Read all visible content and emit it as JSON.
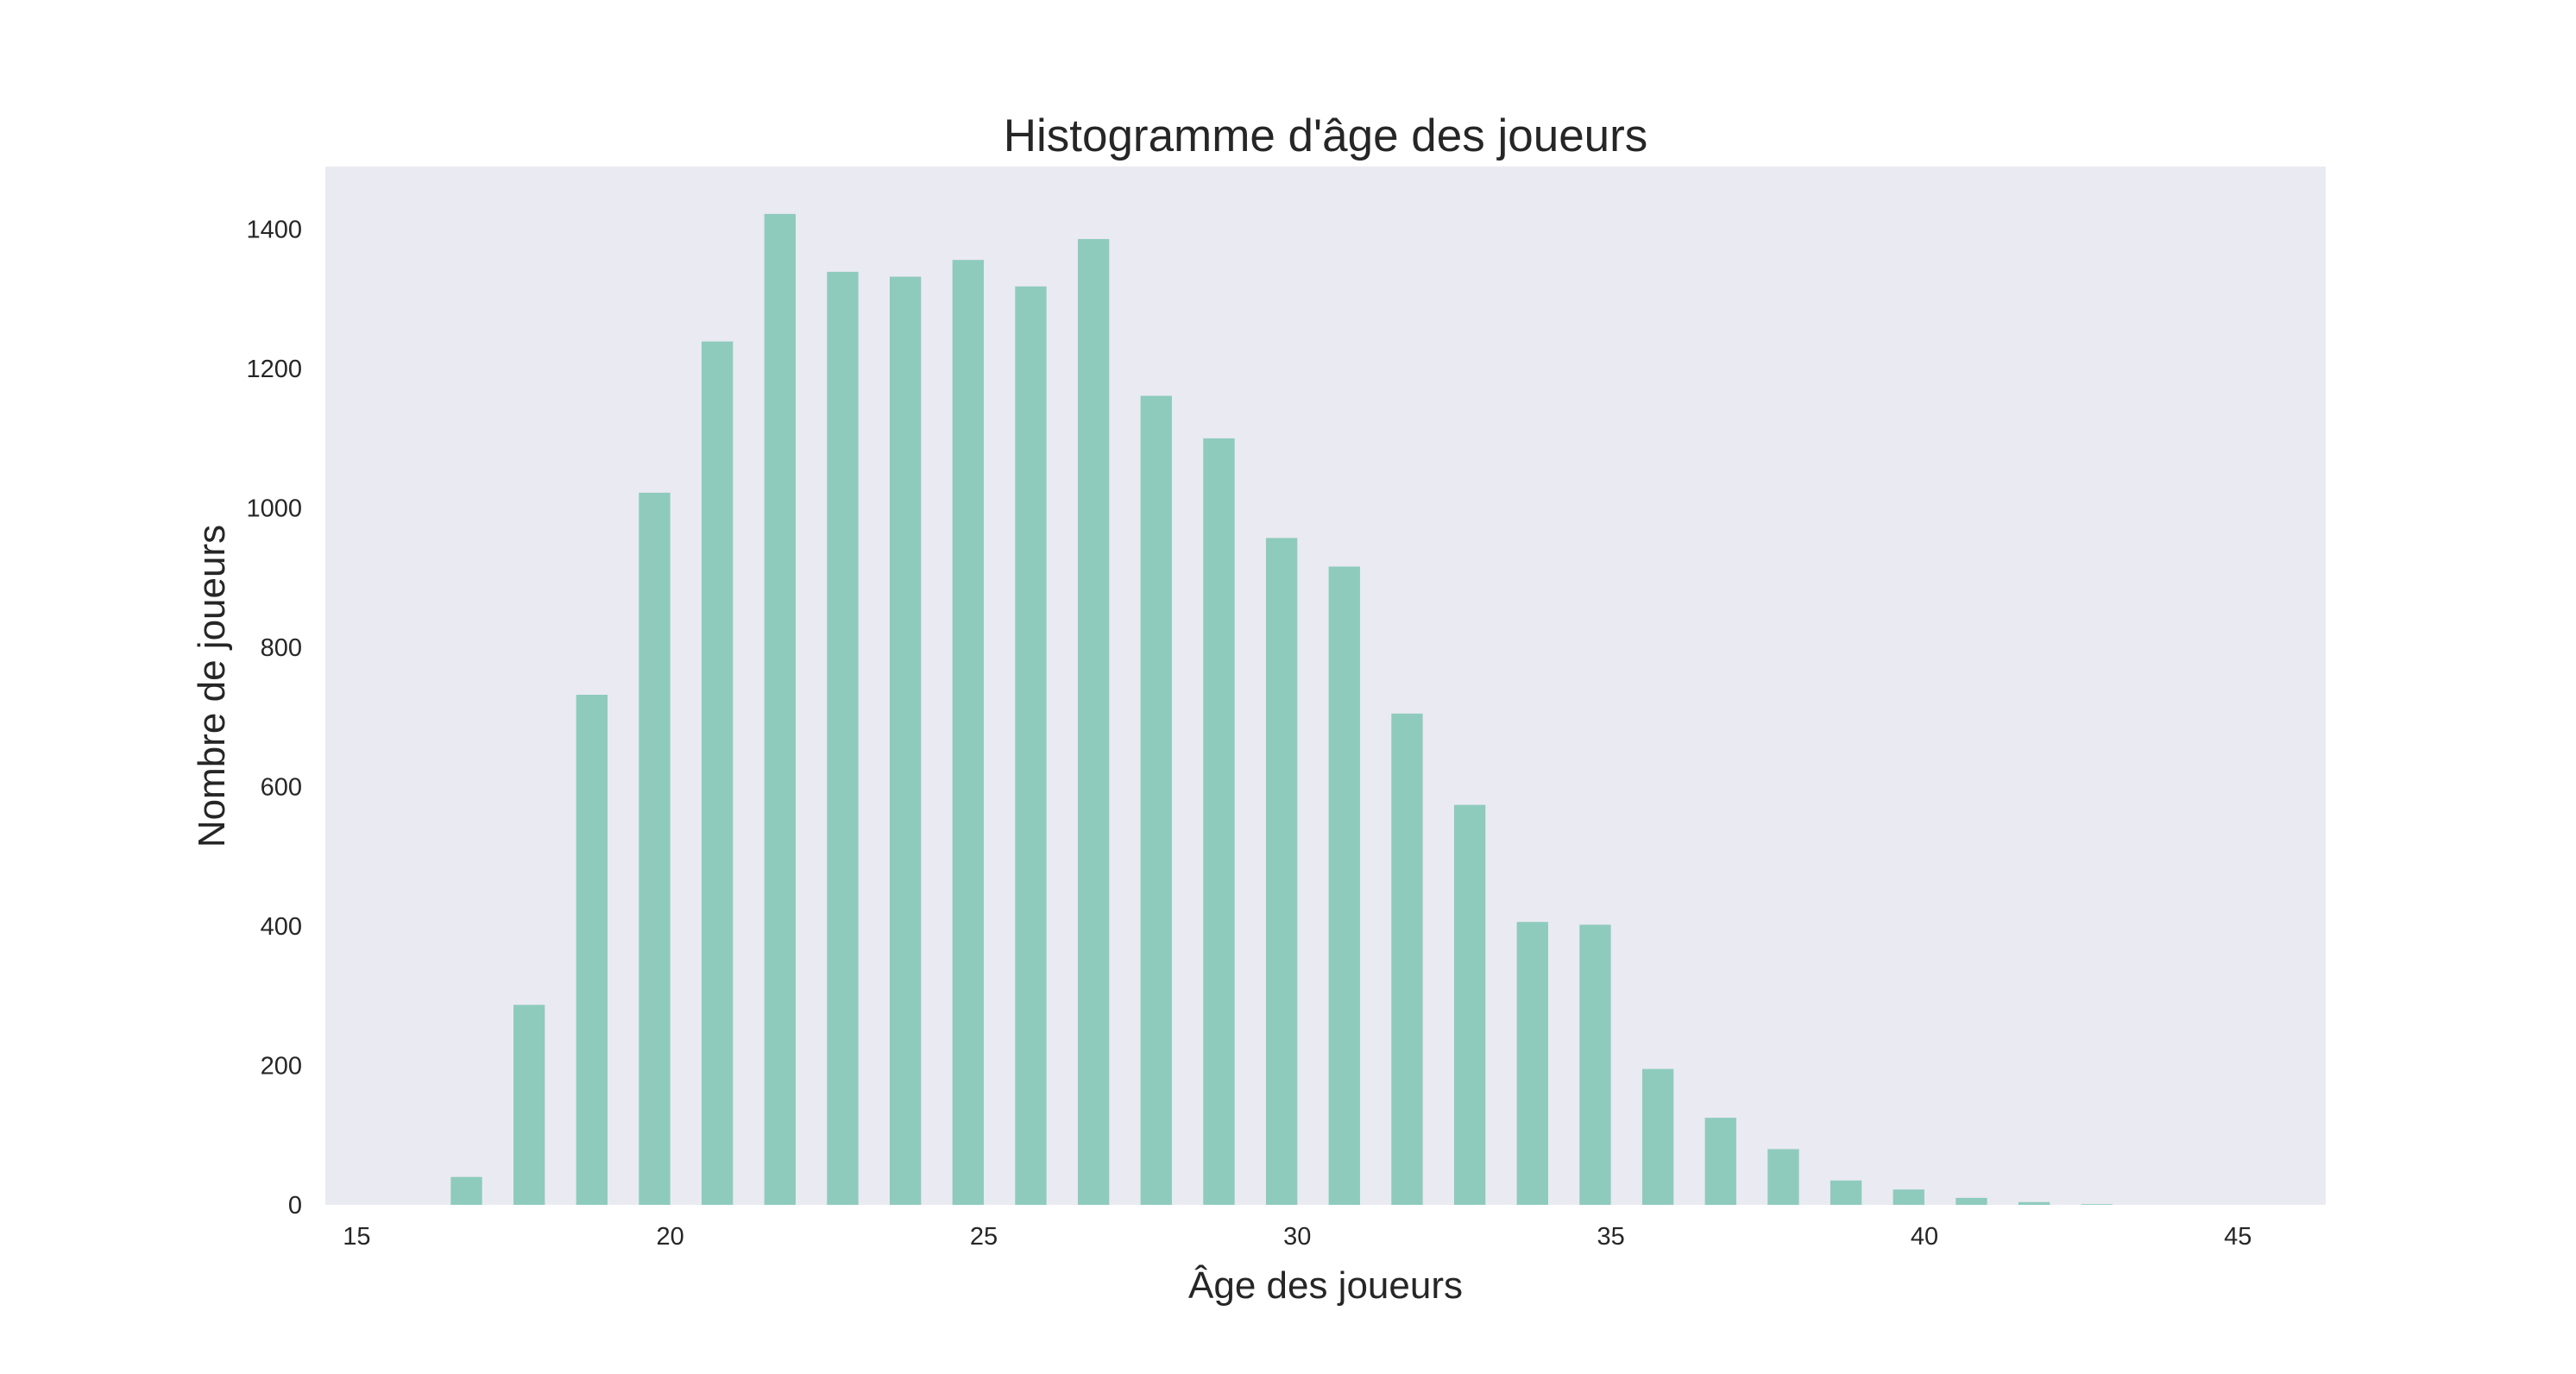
{
  "chart_data": {
    "type": "bar",
    "title": "Histogramme d'âge des joueurs",
    "xlabel": "Âge des joueurs",
    "ylabel": "Nombre de joueurs",
    "x": [
      15,
      16,
      17,
      18,
      19,
      20,
      21,
      22,
      23,
      24,
      25,
      26,
      27,
      28,
      29,
      30,
      31,
      32,
      33,
      34,
      35,
      36,
      37,
      38,
      39,
      40,
      41,
      42,
      43,
      44
    ],
    "values": [
      0,
      40,
      287,
      732,
      1022,
      1239,
      1422,
      1339,
      1332,
      1356,
      1318,
      1386,
      1161,
      1100,
      957,
      916,
      705,
      574,
      406,
      402,
      195,
      125,
      80,
      35,
      22,
      10,
      4,
      1,
      0,
      0
    ],
    "bar_width": 0.5,
    "xlim": [
      14.5,
      46.4
    ],
    "ylim": [
      0,
      1490
    ],
    "xticks": [
      15,
      20,
      25,
      30,
      35,
      40,
      45
    ],
    "yticks": [
      0,
      200,
      400,
      600,
      800,
      1000,
      1200,
      1400
    ],
    "grid": false,
    "legend": "none",
    "colors": {
      "bar": "#8ecbbd",
      "plot_background": "#eaeaf2",
      "text": "#262626"
    }
  }
}
